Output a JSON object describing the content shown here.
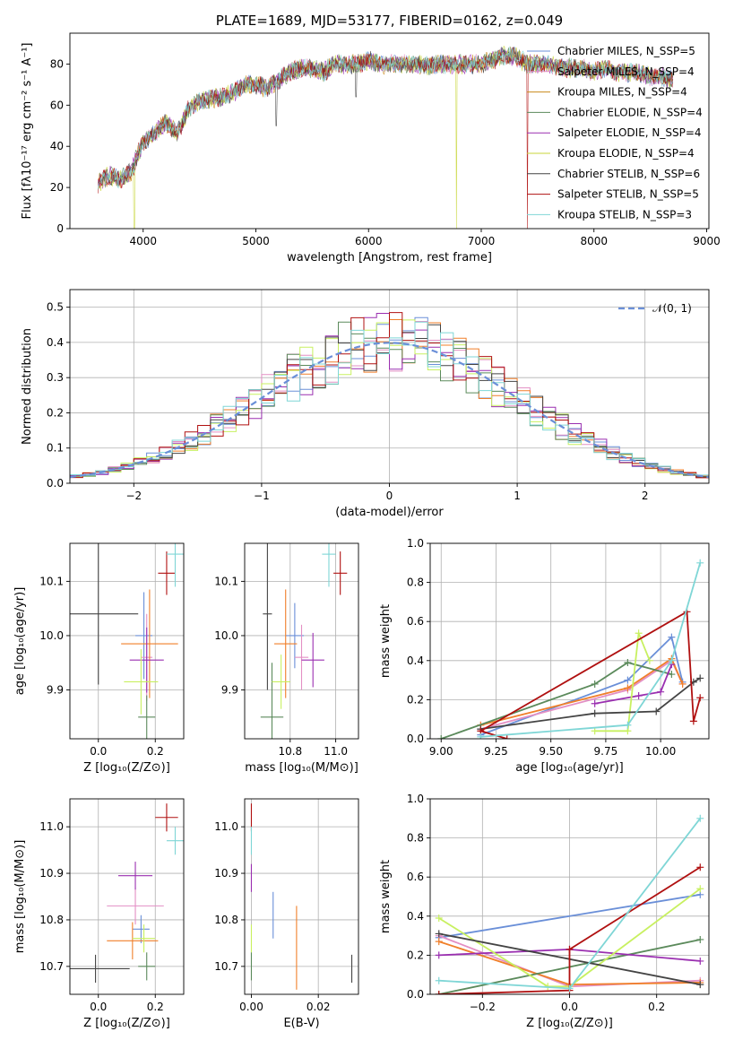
{
  "chart_data": [
    {
      "id": "spectrum",
      "type": "line",
      "title": "PLATE=1689, MJD=53177, FIBERID=0162, z=0.049",
      "xlabel": "wavelength [Angstrom, rest frame]",
      "ylabel": "Flux [fλ10⁻¹⁷ erg cm⁻² s⁻¹ A⁻¹]",
      "xlim": [
        3350,
        9020
      ],
      "ylim": [
        0,
        95
      ],
      "xticks": [
        "4000",
        "5000",
        "6000",
        "7000",
        "8000",
        "9000"
      ],
      "yticks": [
        "0",
        "20",
        "40",
        "60",
        "80"
      ],
      "legend_position": "upper right",
      "x": [
        3600,
        3700,
        3800,
        3900,
        3950,
        4000,
        4100,
        4200,
        4300,
        4400,
        4500,
        4600,
        4700,
        4800,
        4900,
        5000,
        5100,
        5200,
        5300,
        5400,
        5500,
        5600,
        5700,
        5800,
        5900,
        6000,
        6100,
        6200,
        6300,
        6400,
        6500,
        6600,
        6700,
        6800,
        6900,
        7000,
        7100,
        7200,
        7300,
        7400,
        7500,
        7600,
        7700,
        7800,
        7900,
        8000,
        8100,
        8200,
        8300,
        8400,
        8500,
        8600,
        8700
      ],
      "y": [
        22,
        26,
        24,
        28,
        36,
        42,
        46,
        52,
        46,
        58,
        62,
        63,
        64,
        66,
        70,
        70,
        68,
        72,
        76,
        78,
        78,
        76,
        80,
        80,
        80,
        82,
        80,
        80,
        80,
        80,
        79,
        80,
        80,
        80,
        80,
        80,
        82,
        84,
        84,
        80,
        80,
        80,
        78,
        78,
        78,
        76,
        78,
        76,
        76,
        76,
        74,
        74,
        72
      ],
      "dips": [
        {
          "wl": 3920,
          "to": 0,
          "series": "Kroupa ELODIE, N_SSP=4"
        },
        {
          "wl": 6780,
          "to": 0,
          "series": "Kroupa ELODIE, N_SSP=4"
        },
        {
          "wl": 7410,
          "to": 0,
          "series": "Salpeter STELIB, N_SSP=5"
        },
        {
          "wl": 5180,
          "to": 50,
          "series": "Chabrier STELIB, N_SSP=6"
        },
        {
          "wl": 5890,
          "to": 64,
          "series": "Chabrier STELIB, N_SSP=6"
        }
      ],
      "series": [
        {
          "name": "Chabrier MILES, N_SSP=5",
          "color": "#6a8fd8"
        },
        {
          "name": "Salpeter MILES, N_SSP=4",
          "color": "#e38fc4"
        },
        {
          "name": "Kroupa MILES, N_SSP=4",
          "color": "#c98a1a"
        },
        {
          "name": "Chabrier ELODIE, N_SSP=4",
          "color": "#5b8a5b"
        },
        {
          "name": "Salpeter ELODIE, N_SSP=4",
          "color": "#9a2fb0"
        },
        {
          "name": "Kroupa ELODIE, N_SSP=4",
          "color": "#c8d63a"
        },
        {
          "name": "Chabrier STELIB, N_SSP=6",
          "color": "#444444"
        },
        {
          "name": "Salpeter STELIB, N_SSP=5",
          "color": "#b01010"
        },
        {
          "name": "Kroupa STELIB, N_SSP=3",
          "color": "#7fd6d6"
        }
      ]
    },
    {
      "id": "residuals",
      "type": "step",
      "xlabel": "(data-model)/error",
      "ylabel": "Normed distribution",
      "xlim": [
        -2.5,
        2.5
      ],
      "ylim": [
        0,
        0.55
      ],
      "xticks": [
        "−2",
        "−1",
        "0",
        "1",
        "2"
      ],
      "yticks": [
        "0.0",
        "0.1",
        "0.2",
        "0.3",
        "0.4",
        "0.5"
      ],
      "legend_position": "upper right",
      "reference": {
        "name": "𝒩(0, 1)",
        "color": "#6a8fd8"
      },
      "bin_width": 0.1,
      "series_colors": [
        "#6a8fd8",
        "#e38fc4",
        "#f07f2a",
        "#5b8a5b",
        "#9a2fb0",
        "#c8f060",
        "#444444",
        "#b01010",
        "#7fd6d6"
      ]
    },
    {
      "id": "age-vs-Z",
      "type": "errorbar",
      "xlabel": "Z [log₁₀(Z/Z⊙)]",
      "ylabel": "age  [log₁₀(age/yr)]",
      "xlim": [
        -0.1,
        0.3
      ],
      "ylim": [
        9.81,
        10.17
      ],
      "xticks": [
        "0.0",
        "0.2"
      ],
      "yticks": [
        "9.9",
        "10.0",
        "10.1"
      ],
      "points": [
        {
          "x": 0.16,
          "xerr": 0.03,
          "y": 10.0,
          "yerr": 0.08,
          "color": "#6a8fd8"
        },
        {
          "x": 0.17,
          "xerr": 0.02,
          "y": 9.96,
          "yerr": 0.08,
          "color": "#e38fc4"
        },
        {
          "x": 0.18,
          "xerr": 0.1,
          "y": 9.985,
          "yerr": 0.1,
          "color": "#f07f2a"
        },
        {
          "x": 0.17,
          "xerr": 0.03,
          "y": 9.85,
          "yerr": 0.04,
          "color": "#5b8a5b"
        },
        {
          "x": 0.17,
          "xerr": 0.06,
          "y": 9.955,
          "yerr": 0.06,
          "color": "#9a2fb0"
        },
        {
          "x": 0.15,
          "xerr": 0.06,
          "y": 9.915,
          "yerr": 0.06,
          "color": "#c8f060"
        },
        {
          "x": 0.0,
          "xerr": 0.14,
          "y": 10.04,
          "yerr": 0.13,
          "color": "#444444"
        },
        {
          "x": 0.24,
          "xerr": 0.03,
          "y": 10.115,
          "yerr": 0.04,
          "color": "#b01010"
        },
        {
          "x": 0.27,
          "xerr": 0.03,
          "y": 10.15,
          "yerr": 0.06,
          "color": "#7fd6d6"
        }
      ]
    },
    {
      "id": "age-vs-mass",
      "type": "errorbar",
      "xlabel": "mass [log₁₀(M/M⊙)]",
      "ylabel": "",
      "xlim": [
        10.6,
        11.1
      ],
      "ylim": [
        9.81,
        10.17
      ],
      "xticks": [
        "10.8",
        "11.0"
      ],
      "yticks": [
        "9.9",
        "10.0",
        "10.1"
      ],
      "points": [
        {
          "x": 10.82,
          "xerr": 0.04,
          "y": 10.0,
          "yerr": 0.06,
          "color": "#6a8fd8"
        },
        {
          "x": 10.85,
          "xerr": 0.03,
          "y": 9.96,
          "yerr": 0.06,
          "color": "#e38fc4"
        },
        {
          "x": 10.78,
          "xerr": 0.05,
          "y": 9.985,
          "yerr": 0.1,
          "color": "#f07f2a"
        },
        {
          "x": 10.72,
          "xerr": 0.05,
          "y": 9.85,
          "yerr": 0.1,
          "color": "#5b8a5b"
        },
        {
          "x": 10.9,
          "xerr": 0.05,
          "y": 9.955,
          "yerr": 0.05,
          "color": "#9a2fb0"
        },
        {
          "x": 10.76,
          "xerr": 0.04,
          "y": 9.915,
          "yerr": 0.05,
          "color": "#c8f060"
        },
        {
          "x": 10.7,
          "xerr": 0.02,
          "y": 10.04,
          "yerr": 0.14,
          "color": "#444444"
        },
        {
          "x": 11.02,
          "xerr": 0.03,
          "y": 10.115,
          "yerr": 0.04,
          "color": "#b01010"
        },
        {
          "x": 10.97,
          "xerr": 0.03,
          "y": 10.15,
          "yerr": 0.06,
          "color": "#7fd6d6"
        }
      ]
    },
    {
      "id": "weight-vs-age",
      "type": "line",
      "xlabel": "age  [log₁₀(age/yr)]",
      "ylabel": "mass weight",
      "xlim": [
        8.95,
        10.22
      ],
      "ylim": [
        0,
        1
      ],
      "xticks": [
        "9.00",
        "9.25",
        "9.50",
        "9.75",
        "10.00"
      ],
      "yticks": [
        "0.0",
        "0.2",
        "0.4",
        "0.6",
        "0.8",
        "1.0"
      ],
      "series": [
        {
          "color": "#6a8fd8",
          "x": [
            9.18,
            9.85,
            10.05,
            10.1
          ],
          "y": [
            0.02,
            0.3,
            0.52,
            0.29
          ]
        },
        {
          "color": "#e38fc4",
          "x": [
            9.18,
            9.85,
            10.05,
            10.1
          ],
          "y": [
            0.05,
            0.25,
            0.4,
            0.28
          ]
        },
        {
          "color": "#f07f2a",
          "x": [
            9.18,
            9.85,
            10.05,
            10.1
          ],
          "y": [
            0.07,
            0.26,
            0.41,
            0.28
          ]
        },
        {
          "color": "#5b8a5b",
          "x": [
            9.0,
            9.7,
            9.85,
            10.05
          ],
          "y": [
            0.0,
            0.28,
            0.39,
            0.33
          ]
        },
        {
          "color": "#9a2fb0",
          "x": [
            9.7,
            9.9,
            10.0,
            10.05
          ],
          "y": [
            0.18,
            0.22,
            0.24,
            0.38
          ]
        },
        {
          "color": "#c8f060",
          "x": [
            9.7,
            9.85,
            9.9,
            9.95
          ],
          "y": [
            0.04,
            0.04,
            0.54,
            0.4
          ]
        },
        {
          "color": "#444444",
          "x": [
            9.18,
            9.7,
            9.98,
            10.15,
            10.18
          ],
          "y": [
            0.05,
            0.13,
            0.14,
            0.29,
            0.31
          ]
        },
        {
          "color": "#b01010",
          "x": [
            9.3,
            9.18,
            10.12,
            10.15,
            10.18
          ],
          "y": [
            0.0,
            0.04,
            0.65,
            0.09,
            0.21
          ]
        },
        {
          "color": "#7fd6d6",
          "x": [
            9.18,
            9.85,
            10.05,
            10.18
          ],
          "y": [
            0.01,
            0.07,
            0.4,
            0.9
          ]
        }
      ]
    },
    {
      "id": "mass-vs-Z",
      "type": "errorbar",
      "xlabel": "Z [log₁₀(Z/Z⊙)]",
      "ylabel": "mass [log₁₀(M/M⊙)]",
      "xlim": [
        -0.1,
        0.3
      ],
      "ylim": [
        10.64,
        11.06
      ],
      "xticks": [
        "0.0",
        "0.2"
      ],
      "yticks": [
        "10.7",
        "10.8",
        "10.9",
        "11.0"
      ],
      "points": [
        {
          "x": 0.15,
          "xerr": 0.03,
          "y": 10.78,
          "yerr": 0.03,
          "color": "#6a8fd8"
        },
        {
          "x": 0.13,
          "xerr": 0.1,
          "y": 10.83,
          "yerr": 0.04,
          "color": "#e38fc4"
        },
        {
          "x": 0.12,
          "xerr": 0.09,
          "y": 10.755,
          "yerr": 0.04,
          "color": "#f07f2a"
        },
        {
          "x": 0.17,
          "xerr": 0.03,
          "y": 10.7,
          "yerr": 0.03,
          "color": "#5b8a5b"
        },
        {
          "x": 0.13,
          "xerr": 0.06,
          "y": 10.895,
          "yerr": 0.03,
          "color": "#9a2fb0"
        },
        {
          "x": 0.16,
          "xerr": 0.04,
          "y": 10.76,
          "yerr": 0.03,
          "color": "#c8f060"
        },
        {
          "x": -0.01,
          "xerr": 0.12,
          "y": 10.695,
          "yerr": 0.03,
          "color": "#444444"
        },
        {
          "x": 0.24,
          "xerr": 0.04,
          "y": 11.02,
          "yerr": 0.03,
          "color": "#b01010"
        },
        {
          "x": 0.27,
          "xerr": 0.03,
          "y": 10.97,
          "yerr": 0.03,
          "color": "#7fd6d6"
        }
      ]
    },
    {
      "id": "mass-vs-ebv",
      "type": "errorbar",
      "xlabel": "E(B-V)",
      "ylabel": "",
      "xlim": [
        -0.002,
        0.032
      ],
      "ylim": [
        10.64,
        11.06
      ],
      "xticks": [
        "0.00",
        "0.02"
      ],
      "yticks": [
        "10.7",
        "10.8",
        "10.9",
        "11.0"
      ],
      "points": [
        {
          "x": 0.0065,
          "xerr": 0,
          "y": 10.81,
          "yerr": 0.05,
          "color": "#6a8fd8"
        },
        {
          "x": 0.0135,
          "xerr": 0,
          "y": 10.74,
          "yerr": 0.09,
          "color": "#f07f2a"
        },
        {
          "x": 0.0,
          "xerr": 0,
          "y": 10.7,
          "yerr": 0.03,
          "color": "#5b8a5b"
        },
        {
          "x": 0.0,
          "xerr": 0,
          "y": 10.89,
          "yerr": 0.03,
          "color": "#9a2fb0"
        },
        {
          "x": 0.0,
          "xerr": 0,
          "y": 10.76,
          "yerr": 0.03,
          "color": "#c8f060"
        },
        {
          "x": 0.03,
          "xerr": 0,
          "y": 10.695,
          "yerr": 0.03,
          "color": "#444444"
        },
        {
          "x": 0.0,
          "xerr": 0,
          "y": 11.02,
          "yerr": 0.03,
          "color": "#b01010"
        },
        {
          "x": 0.0,
          "xerr": 0,
          "y": 10.97,
          "yerr": 0.03,
          "color": "#7fd6d6"
        }
      ]
    },
    {
      "id": "weight-vs-Z",
      "type": "line",
      "xlabel": "Z [log₁₀(Z/Z⊙)]",
      "ylabel": "mass weight",
      "xlim": [
        -0.32,
        0.32
      ],
      "ylim": [
        0,
        1
      ],
      "xticks": [
        "−0.2",
        "0.0",
        "0.2"
      ],
      "yticks": [
        "0.0",
        "0.2",
        "0.4",
        "0.6",
        "0.8",
        "1.0"
      ],
      "series": [
        {
          "color": "#6a8fd8",
          "x": [
            -0.3,
            0.3
          ],
          "y": [
            0.29,
            0.51
          ]
        },
        {
          "color": "#e38fc4",
          "x": [
            -0.3,
            0.0,
            0.3
          ],
          "y": [
            0.3,
            0.04,
            0.07
          ]
        },
        {
          "color": "#f07f2a",
          "x": [
            -0.3,
            0.0,
            0.3
          ],
          "y": [
            0.27,
            0.05,
            0.06
          ]
        },
        {
          "color": "#5b8a5b",
          "x": [
            -0.3,
            0.3
          ],
          "y": [
            0.0,
            0.28
          ]
        },
        {
          "color": "#9a2fb0",
          "x": [
            -0.3,
            0.0,
            0.3
          ],
          "y": [
            0.2,
            0.23,
            0.17
          ]
        },
        {
          "color": "#c8f060",
          "x": [
            -0.3,
            -0.05,
            0.0,
            0.3
          ],
          "y": [
            0.39,
            0.04,
            0.04,
            0.54
          ]
        },
        {
          "color": "#444444",
          "x": [
            -0.3,
            0.3
          ],
          "y": [
            0.31,
            0.05
          ]
        },
        {
          "color": "#b01010",
          "x": [
            -0.3,
            0.0,
            0.0,
            0.3
          ],
          "y": [
            0.0,
            0.02,
            0.23,
            0.65
          ]
        },
        {
          "color": "#7fd6d6",
          "x": [
            -0.3,
            0.0,
            0.3
          ],
          "y": [
            0.07,
            0.03,
            0.9
          ]
        }
      ]
    }
  ]
}
